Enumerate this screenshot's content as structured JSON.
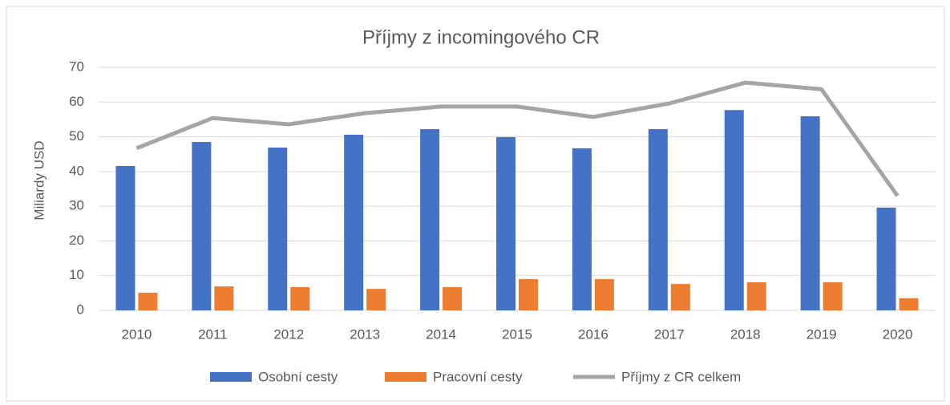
{
  "chart_data": {
    "type": "bar",
    "title": "Příjmy z incomingového CR",
    "y_label": "Miliardy USD",
    "categories": [
      "2010",
      "2011",
      "2012",
      "2013",
      "2014",
      "2015",
      "2016",
      "2017",
      "2018",
      "2019",
      "2020"
    ],
    "series": [
      {
        "name": "Osobní cesty",
        "color": "#4472c4",
        "type": "bar",
        "values": [
          41.6,
          48.5,
          46.9,
          50.6,
          52.2,
          49.9,
          46.7,
          52.2,
          57.7,
          55.9,
          29.6
        ]
      },
      {
        "name": "Pracovní cesty",
        "color": "#ed7d31",
        "type": "bar",
        "values": [
          5.1,
          6.9,
          6.7,
          6.2,
          6.7,
          9.0,
          9.0,
          7.6,
          8.1,
          8.1,
          3.5
        ]
      },
      {
        "name": "Příjmy z CR celkem",
        "color": "#a5a5a5",
        "type": "line",
        "values": [
          46.7,
          55.4,
          53.6,
          56.8,
          58.7,
          58.7,
          55.7,
          59.6,
          65.6,
          63.7,
          33.0
        ]
      }
    ],
    "ylim": [
      0,
      70
    ],
    "yticks": [
      0,
      10,
      20,
      30,
      40,
      50,
      60,
      70
    ],
    "grid": true,
    "legend": "bottom"
  }
}
